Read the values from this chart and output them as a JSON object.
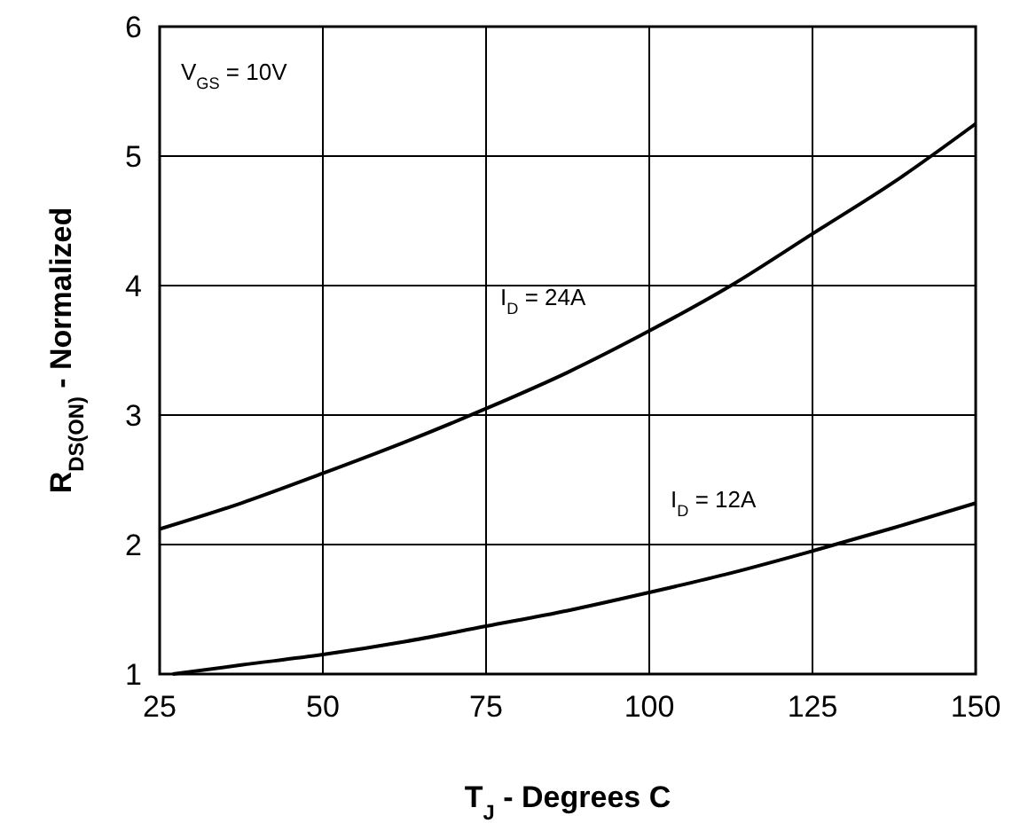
{
  "chart_data": {
    "type": "line",
    "xlabel": "T$_{J}$ - Degrees C",
    "ylabel": "R$_{DS(ON)}$ - Normalized",
    "xlim": [
      25,
      150
    ],
    "xticks": [
      25,
      50,
      75,
      100,
      125,
      150
    ],
    "ylim": [
      1,
      6
    ],
    "yticks": [
      1,
      2,
      3,
      4,
      5,
      6
    ],
    "grid": true,
    "line_style": "solid",
    "marker": "none",
    "series": [
      {
        "name": "I$_{D}$ = 24A",
        "color": "#000000",
        "x": [
          25,
          37.5,
          50,
          62.5,
          75,
          87.5,
          100,
          112.5,
          125,
          137.5,
          150
        ],
        "values": [
          2.12,
          2.32,
          2.55,
          2.79,
          3.05,
          3.33,
          3.65,
          4.0,
          4.4,
          4.8,
          5.25
        ]
      },
      {
        "name": "I$_{D}$ = 12A",
        "color": "#000000",
        "x": [
          27,
          37.5,
          50,
          62.5,
          75,
          87.5,
          100,
          112.5,
          125,
          137.5,
          150
        ],
        "values": [
          1.0,
          1.07,
          1.15,
          1.25,
          1.37,
          1.49,
          1.63,
          1.78,
          1.95,
          2.13,
          2.32
        ]
      }
    ],
    "annotations": [
      "V$_{GS}$ = 10V"
    ]
  }
}
